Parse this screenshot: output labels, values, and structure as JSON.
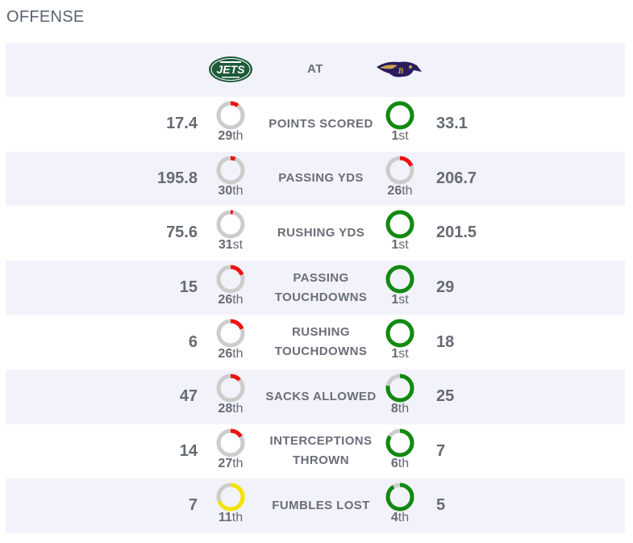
{
  "section": {
    "title": "OFFENSE"
  },
  "header": {
    "at_label": "AT",
    "away_team_logo": "jets-logo",
    "home_team_logo": "ravens-logo"
  },
  "colors": {
    "good": "#118a11",
    "bad": "#ee1111",
    "mid": "#f3e400",
    "track": "#cccccc",
    "row_alt": "#f2f3fa"
  },
  "stats": [
    {
      "label": "POINTS SCORED",
      "away": {
        "value": "17.4",
        "rank": "29",
        "suffix": "th",
        "fraction": 0.1,
        "color": "bad"
      },
      "home": {
        "value": "33.1",
        "rank": "1",
        "suffix": "st",
        "fraction": 1.0,
        "color": "good"
      }
    },
    {
      "label": "PASSING YDS",
      "away": {
        "value": "195.8",
        "rank": "30",
        "suffix": "th",
        "fraction": 0.06,
        "color": "bad"
      },
      "home": {
        "value": "206.7",
        "rank": "26",
        "suffix": "th",
        "fraction": 0.19,
        "color": "bad"
      }
    },
    {
      "label": "RUSHING YDS",
      "away": {
        "value": "75.6",
        "rank": "31",
        "suffix": "st",
        "fraction": 0.03,
        "color": "bad"
      },
      "home": {
        "value": "201.5",
        "rank": "1",
        "suffix": "st",
        "fraction": 1.0,
        "color": "good"
      }
    },
    {
      "label": "PASSING TOUCHDOWNS",
      "away": {
        "value": "15",
        "rank": "26",
        "suffix": "th",
        "fraction": 0.19,
        "color": "bad"
      },
      "home": {
        "value": "29",
        "rank": "1",
        "suffix": "st",
        "fraction": 1.0,
        "color": "good"
      }
    },
    {
      "label": "RUSHING TOUCHDOWNS",
      "away": {
        "value": "6",
        "rank": "26",
        "suffix": "th",
        "fraction": 0.19,
        "color": "bad"
      },
      "home": {
        "value": "18",
        "rank": "1",
        "suffix": "st",
        "fraction": 1.0,
        "color": "good"
      }
    },
    {
      "label": "SACKS ALLOWED",
      "away": {
        "value": "47",
        "rank": "28",
        "suffix": "th",
        "fraction": 0.13,
        "color": "bad"
      },
      "home": {
        "value": "25",
        "rank": "8",
        "suffix": "th",
        "fraction": 0.78,
        "color": "good"
      }
    },
    {
      "label": "INTERCEPTIONS THROWN",
      "away": {
        "value": "14",
        "rank": "27",
        "suffix": "th",
        "fraction": 0.16,
        "color": "bad"
      },
      "home": {
        "value": "7",
        "rank": "6",
        "suffix": "th",
        "fraction": 0.84,
        "color": "good"
      }
    },
    {
      "label": "FUMBLES LOST",
      "away": {
        "value": "7",
        "rank": "11",
        "suffix": "th",
        "fraction": 0.69,
        "color": "mid"
      },
      "home": {
        "value": "5",
        "rank": "4",
        "suffix": "th",
        "fraction": 0.91,
        "color": "good"
      }
    }
  ]
}
